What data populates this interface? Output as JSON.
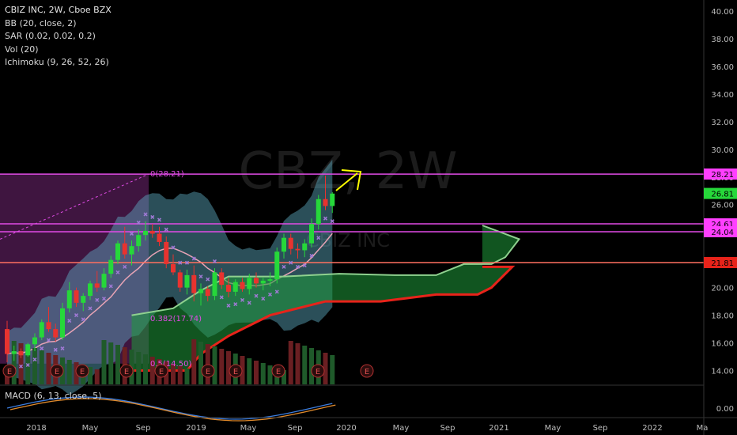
{
  "symbol_title": "CBIZ INC, 2W, Cboe BZX",
  "watermark": {
    "symbol": "CBZ, 2W",
    "name": "CBIZ INC"
  },
  "indicators": [
    "BB (20, close, 2)",
    "SAR (0.02, 0.02, 0.2)",
    "Vol (20)",
    "Ichimoku (9, 26, 52, 26)"
  ],
  "macd_label": "MACD (6, 13, close, 5)",
  "colors": {
    "background": "#000000",
    "up": "#26d83a",
    "down": "#e8332f",
    "fib": "#e14be6",
    "bb_fill": "#5fb0c5",
    "cloud": "#1f9a3a",
    "lagging": "#e8231a",
    "price_label": "#ff3fff",
    "arrow": "#ffff00"
  },
  "chart_data": {
    "type": "candlestick",
    "y_range": [
      13,
      40.8
    ],
    "price_axis": {
      "ticks": [
        "40.00",
        "38.00",
        "36.00",
        "34.00",
        "32.00",
        "30.00",
        "28.00",
        "26.00",
        "24.00",
        "22.00",
        "20.00",
        "18.00",
        "16.00",
        "14.00"
      ],
      "tick_values": [
        40,
        38,
        36,
        34,
        32,
        30,
        28,
        26,
        24,
        22,
        20,
        18,
        16,
        14
      ],
      "current_price": "26.81",
      "level_labels": [
        "28.21",
        "24.61",
        "24.04",
        "21.81"
      ]
    },
    "time_axis": [
      "2018",
      "May",
      "Sep",
      "2019",
      "May",
      "Sep",
      "2020",
      "May",
      "Sep",
      "2021",
      "May",
      "Sep",
      "2022",
      "Ma"
    ],
    "macd_axis": "0.00",
    "horizontal_levels": [
      28.21,
      24.61,
      24.04,
      21.81
    ],
    "fib_labels": [
      "0(28.21)",
      "0.382(17.74)",
      "0.5(14.50)"
    ],
    "candles": [
      [
        17.0,
        17.6,
        14.6,
        15.2
      ],
      [
        15.2,
        15.8,
        14.7,
        15.4
      ],
      [
        15.4,
        15.6,
        14.9,
        15.1
      ],
      [
        15.1,
        16.0,
        15.0,
        15.9
      ],
      [
        15.9,
        16.7,
        15.4,
        16.4
      ],
      [
        16.4,
        17.7,
        16.2,
        17.5
      ],
      [
        17.5,
        18.6,
        16.8,
        17.0
      ],
      [
        17.0,
        17.4,
        16.1,
        16.4
      ],
      [
        16.4,
        18.9,
        16.2,
        18.5
      ],
      [
        18.5,
        20.4,
        18.2,
        19.8
      ],
      [
        19.8,
        20.0,
        18.6,
        18.9
      ],
      [
        18.9,
        19.6,
        18.3,
        19.4
      ],
      [
        19.4,
        20.5,
        19.1,
        20.3
      ],
      [
        20.3,
        21.2,
        19.7,
        20.0
      ],
      [
        20.0,
        21.4,
        19.8,
        21.0
      ],
      [
        21.0,
        22.3,
        20.7,
        22.0
      ],
      [
        22.0,
        23.4,
        21.7,
        23.2
      ],
      [
        23.2,
        24.4,
        22.1,
        22.4
      ],
      [
        22.4,
        23.4,
        21.6,
        23.0
      ],
      [
        23.0,
        24.2,
        22.6,
        23.8
      ],
      [
        23.8,
        24.8,
        23.4,
        24.1
      ],
      [
        24.1,
        24.6,
        23.6,
        23.9
      ],
      [
        23.9,
        24.4,
        23.0,
        23.3
      ],
      [
        23.3,
        23.7,
        21.4,
        21.7
      ],
      [
        21.7,
        22.4,
        20.9,
        21.1
      ],
      [
        21.1,
        21.3,
        19.7,
        20.0
      ],
      [
        20.0,
        21.3,
        19.5,
        20.9
      ],
      [
        20.9,
        21.6,
        19.0,
        19.6
      ],
      [
        19.6,
        20.3,
        18.7,
        19.9
      ],
      [
        19.9,
        20.1,
        19.0,
        19.4
      ],
      [
        19.4,
        21.4,
        19.1,
        21.1
      ],
      [
        21.1,
        21.4,
        19.9,
        20.2
      ],
      [
        20.2,
        20.7,
        19.3,
        19.7
      ],
      [
        19.7,
        20.6,
        19.4,
        20.4
      ],
      [
        20.4,
        20.7,
        19.7,
        19.9
      ],
      [
        19.9,
        21.0,
        19.5,
        20.7
      ],
      [
        20.7,
        21.1,
        20.0,
        20.3
      ],
      [
        20.3,
        20.7,
        19.8,
        20.5
      ],
      [
        20.5,
        21.1,
        20.1,
        20.6
      ],
      [
        20.6,
        22.9,
        20.3,
        22.6
      ],
      [
        22.6,
        23.9,
        22.1,
        23.6
      ],
      [
        23.6,
        23.9,
        22.4,
        22.8
      ],
      [
        22.8,
        23.2,
        22.1,
        22.7
      ],
      [
        22.7,
        23.5,
        22.2,
        23.2
      ],
      [
        23.2,
        25.0,
        22.9,
        24.6
      ],
      [
        24.6,
        26.7,
        24.2,
        26.4
      ],
      [
        26.4,
        28.1,
        25.6,
        25.9
      ],
      [
        25.9,
        26.9,
        25.4,
        26.8
      ]
    ]
  }
}
